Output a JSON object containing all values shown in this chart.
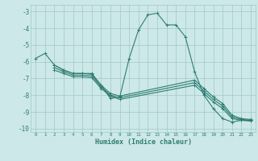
{
  "xlabel": "Humidex (Indice chaleur)",
  "bg_color": "#cde8e8",
  "grid_color": "#a0c8c8",
  "line_color": "#2e7d72",
  "xlim": [
    -0.5,
    23.5
  ],
  "ylim": [
    -10.2,
    -2.6
  ],
  "yticks": [
    -10,
    -9,
    -8,
    -7,
    -6,
    -5,
    -4,
    -3
  ],
  "xticks": [
    0,
    1,
    2,
    3,
    4,
    5,
    6,
    7,
    8,
    9,
    10,
    11,
    12,
    13,
    14,
    15,
    16,
    17,
    18,
    19,
    20,
    21,
    22,
    23
  ],
  "series": [
    {
      "x": [
        0,
        1,
        2,
        3,
        4,
        5,
        6,
        7,
        8,
        9,
        10,
        11,
        12,
        13,
        14,
        15,
        16,
        17,
        18,
        19,
        20,
        21,
        22,
        23
      ],
      "y": [
        -5.8,
        -5.5,
        -6.2,
        -6.5,
        -6.7,
        -6.7,
        -6.7,
        -7.4,
        -8.2,
        -8.1,
        -5.8,
        -4.1,
        -3.2,
        -3.1,
        -3.8,
        -3.8,
        -4.5,
        -6.6,
        -8.0,
        -8.8,
        -9.4,
        -9.6,
        -9.5,
        -9.5
      ]
    },
    {
      "x": [
        2,
        3,
        4,
        5,
        6,
        7,
        8,
        9,
        17,
        18,
        19,
        20,
        21,
        22,
        23
      ],
      "y": [
        -6.2,
        -6.5,
        -6.7,
        -6.7,
        -6.75,
        -7.4,
        -7.9,
        -8.05,
        -7.1,
        -7.6,
        -8.1,
        -8.5,
        -9.2,
        -9.4,
        -9.45
      ]
    },
    {
      "x": [
        2,
        3,
        4,
        5,
        6,
        7,
        8,
        9,
        17,
        18,
        19,
        20,
        21,
        22,
        23
      ],
      "y": [
        -6.35,
        -6.6,
        -6.8,
        -6.8,
        -6.85,
        -7.5,
        -8.0,
        -8.15,
        -7.25,
        -7.75,
        -8.25,
        -8.65,
        -9.3,
        -9.45,
        -9.5
      ]
    },
    {
      "x": [
        2,
        3,
        4,
        5,
        6,
        7,
        8,
        9,
        17,
        18,
        19,
        20,
        21,
        22,
        23
      ],
      "y": [
        -6.5,
        -6.7,
        -6.9,
        -6.9,
        -6.95,
        -7.6,
        -8.05,
        -8.25,
        -7.4,
        -7.9,
        -8.4,
        -8.8,
        -9.4,
        -9.5,
        -9.55
      ]
    }
  ]
}
